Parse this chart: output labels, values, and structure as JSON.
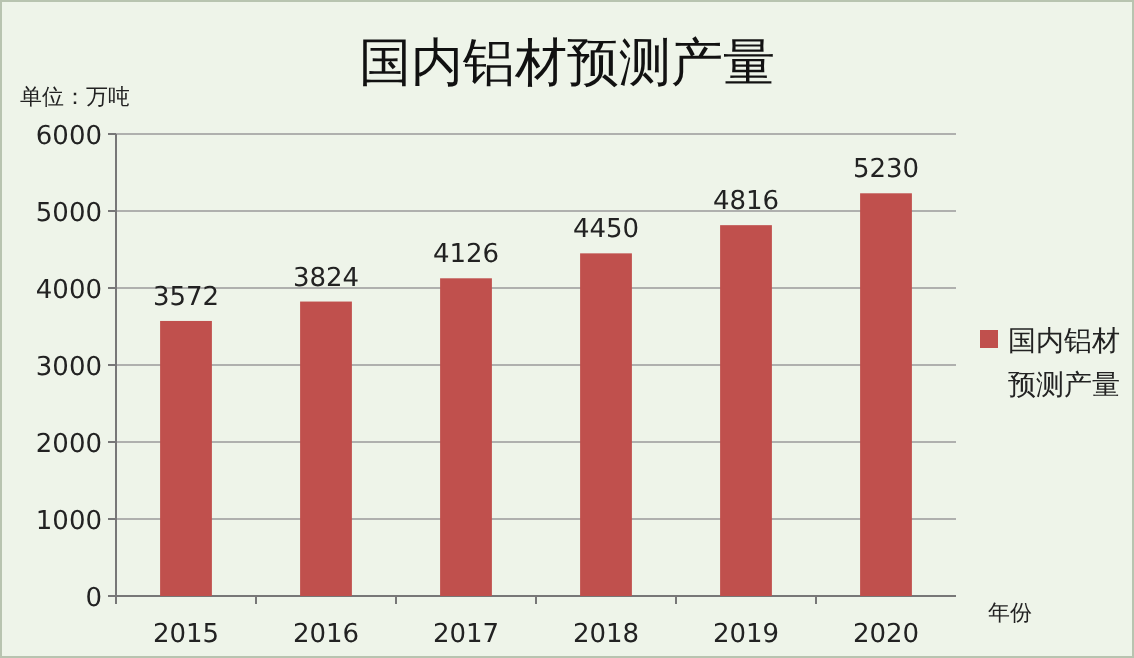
{
  "chart_data": {
    "type": "bar",
    "title": "国内铝材预测产量",
    "ylabel": "单位：万吨",
    "xlabel": "年份",
    "categories": [
      "2015",
      "2016",
      "2017",
      "2018",
      "2019",
      "2020"
    ],
    "series": [
      {
        "name": "国内铝材预测产量",
        "color": "#c0504d",
        "values": [
          3572,
          3824,
          4126,
          4450,
          4816,
          5230
        ]
      }
    ],
    "ylim": [
      0,
      6000
    ],
    "yticks": [
      0,
      1000,
      2000,
      3000,
      4000,
      5000,
      6000
    ],
    "grid": "y",
    "legend": "right",
    "data_labels": true
  }
}
